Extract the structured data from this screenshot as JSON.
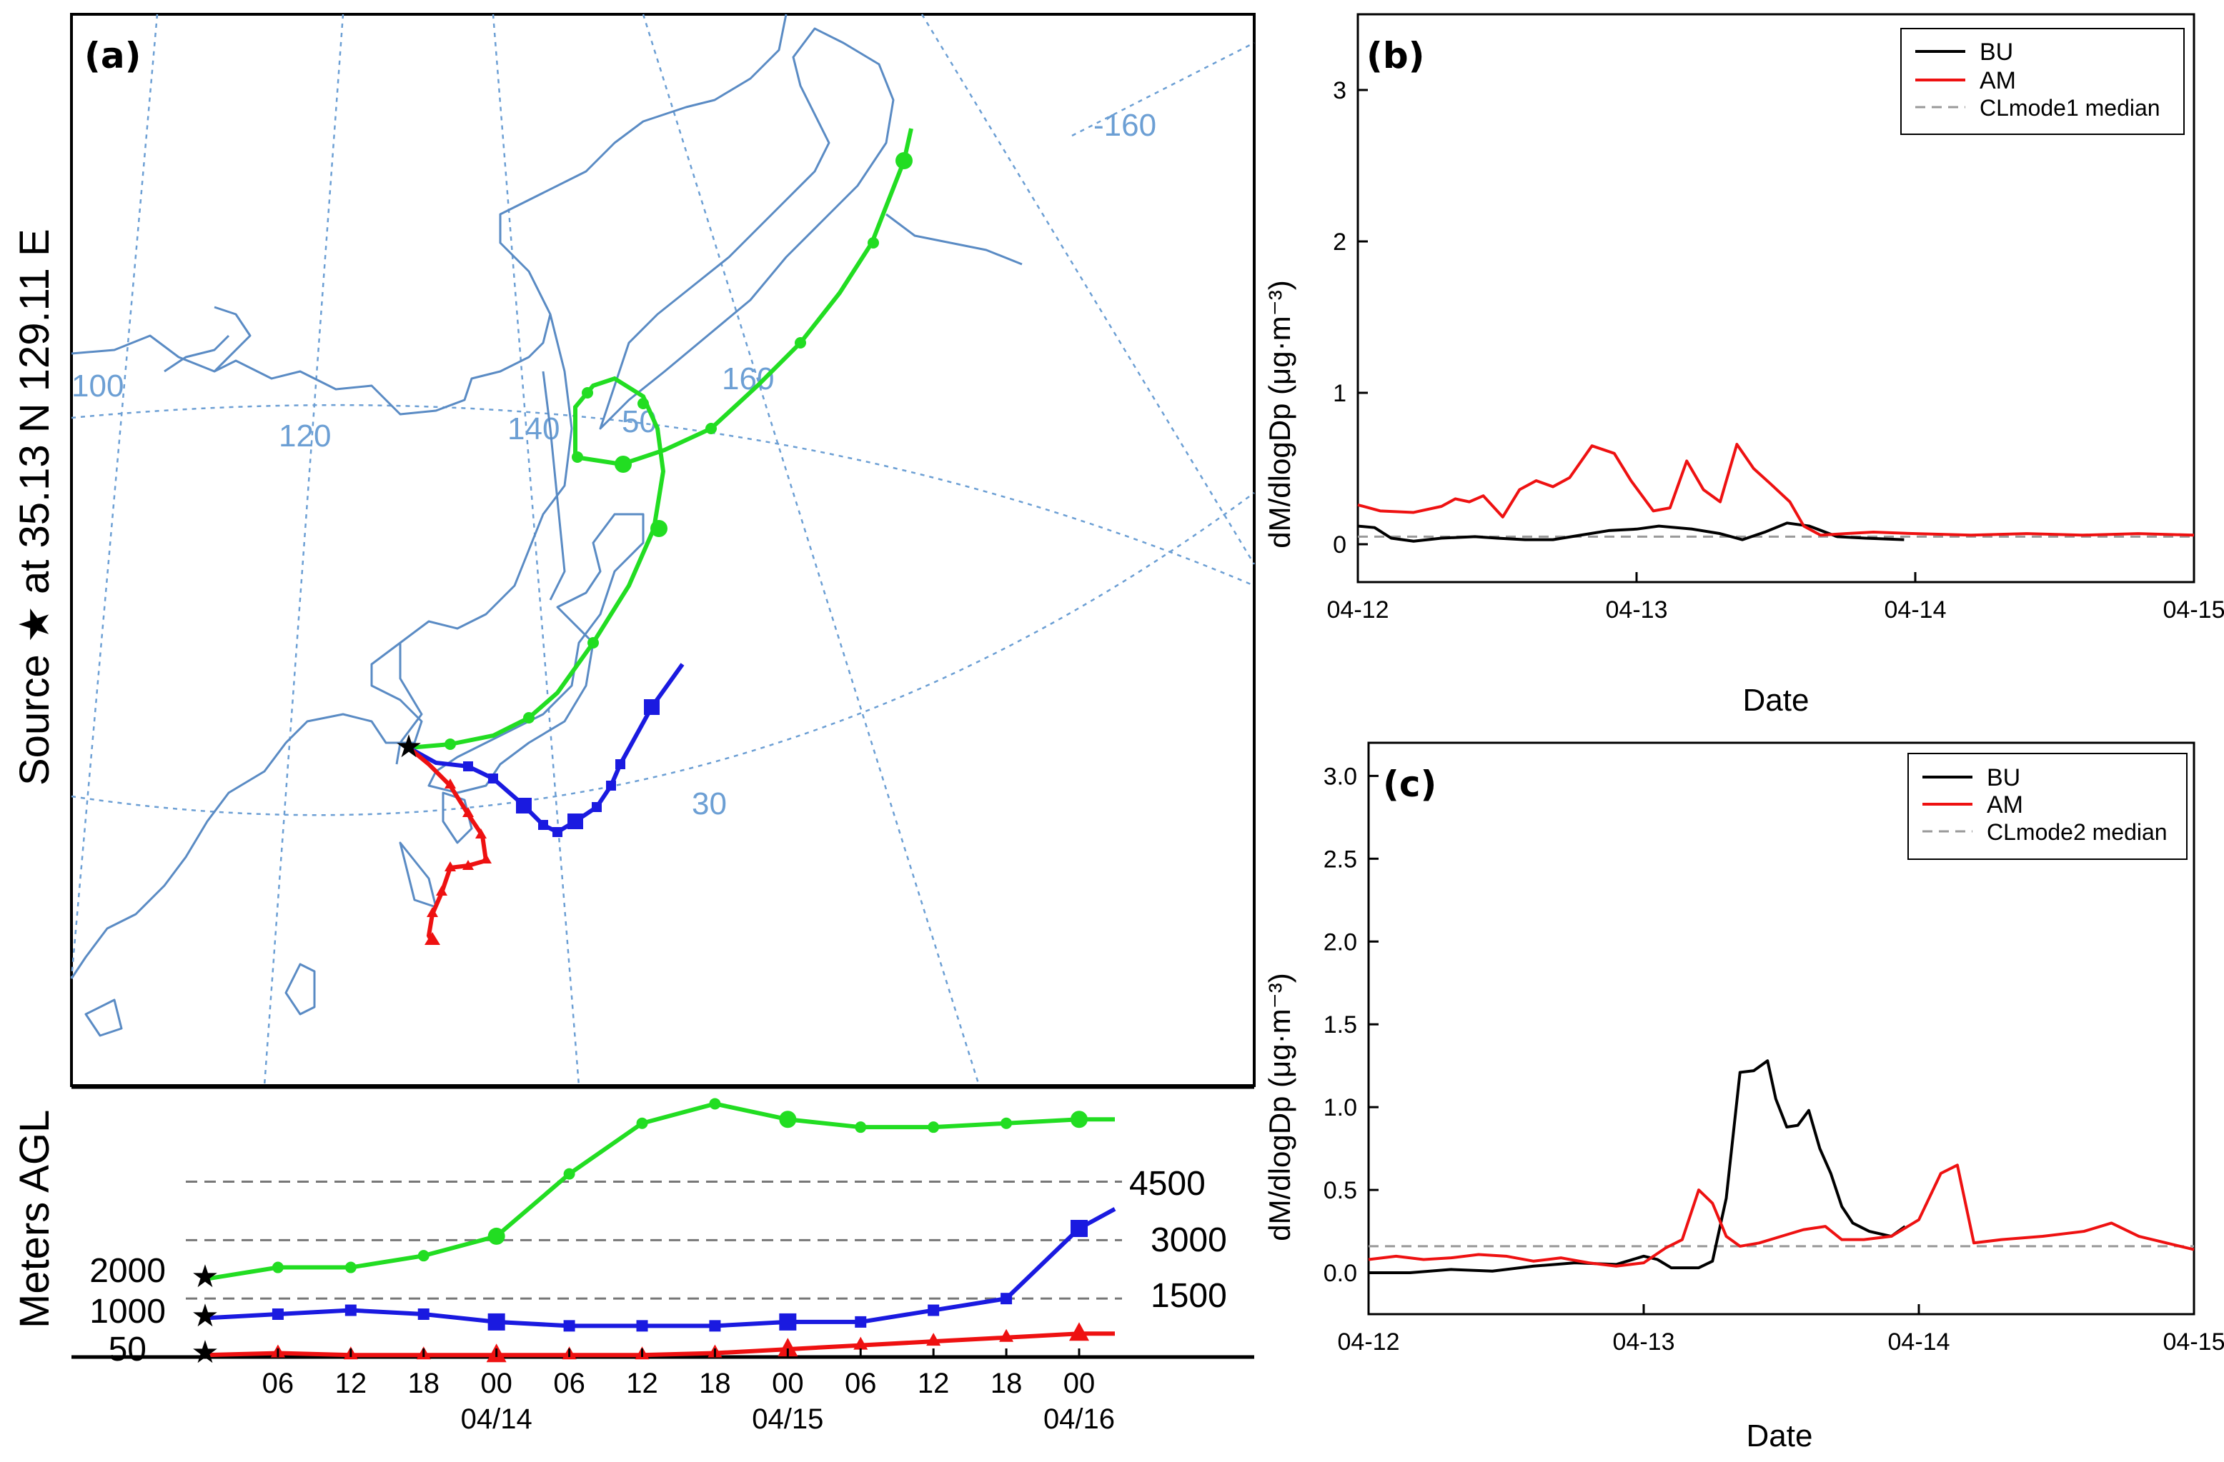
{
  "panel_a": {
    "label": "(a)",
    "source_title": "Source ★ at 35.13 N 129.11 E",
    "yaxis_label": "Meters AGL",
    "map_labels": {
      "lon_100": "100",
      "lon_120": "120",
      "lon_140": "140",
      "lon_160": "160",
      "lon_m160": "-160",
      "lat_50": "50",
      "lat_30": "30"
    },
    "height_ref_labels": [
      "4500",
      "3000",
      "1500"
    ],
    "start_height_labels": [
      "2000",
      "1000",
      "50"
    ],
    "time_ticks": [
      "06",
      "12",
      "18",
      "00",
      "06",
      "12",
      "18",
      "00",
      "06",
      "12",
      "18",
      "00"
    ],
    "date_labels": [
      "04/14",
      "04/15",
      "04/16"
    ]
  },
  "chart_data": [
    {
      "type": "line",
      "panel": "(a) vertical profile",
      "title": "",
      "xlabel": "",
      "ylabel": "Meters AGL",
      "x_hours": [
        0,
        6,
        12,
        18,
        24,
        30,
        36,
        42,
        48,
        54,
        60,
        66,
        72
      ],
      "reference_lines": [
        1500,
        3000,
        4500
      ],
      "series": [
        {
          "name": "2000 m",
          "color": "#22dd22",
          "values": [
            2000,
            2300,
            2300,
            2600,
            3100,
            4700,
            6000,
            6500,
            6100,
            5900,
            5900,
            6000,
            6100
          ]
        },
        {
          "name": "1000 m",
          "color": "#1a1ae0",
          "values": [
            1000,
            1100,
            1200,
            1100,
            900,
            800,
            800,
            800,
            900,
            900,
            1200,
            1500,
            3300
          ]
        },
        {
          "name": "50 m",
          "color": "#ee1111",
          "values": [
            50,
            100,
            50,
            50,
            50,
            50,
            50,
            100,
            200,
            300,
            400,
            500,
            600
          ]
        }
      ]
    },
    {
      "type": "line",
      "panel": "(b)",
      "title": "",
      "xlabel": "Date",
      "ylabel": "dM/dlogDp (μg·m⁻³)",
      "ylim": [
        -0.25,
        3.5
      ],
      "xlim": [
        0,
        3
      ],
      "xticks": [
        "04-12",
        "04-13",
        "04-14",
        "04-15"
      ],
      "yticks": [
        "0",
        "1",
        "2",
        "3"
      ],
      "legend": [
        "BU",
        "AM",
        "CLmode1 median"
      ],
      "median": 0.05,
      "series": [
        {
          "name": "BU",
          "color": "#000000",
          "x": [
            0,
            0.06,
            0.12,
            0.2,
            0.3,
            0.42,
            0.5,
            0.6,
            0.7,
            0.8,
            0.9,
            1.0,
            1.08,
            1.2,
            1.3,
            1.38,
            1.46,
            1.54,
            1.62,
            1.72,
            1.82,
            1.96
          ],
          "values": [
            0.12,
            0.11,
            0.04,
            0.02,
            0.04,
            0.05,
            0.04,
            0.03,
            0.03,
            0.06,
            0.09,
            0.1,
            0.12,
            0.1,
            0.07,
            0.03,
            0.08,
            0.14,
            0.12,
            0.05,
            0.04,
            0.03
          ]
        },
        {
          "name": "AM",
          "color": "#ee1111",
          "x": [
            0,
            0.08,
            0.2,
            0.3,
            0.35,
            0.4,
            0.45,
            0.52,
            0.58,
            0.64,
            0.7,
            0.76,
            0.84,
            0.92,
            0.98,
            1.06,
            1.12,
            1.18,
            1.24,
            1.3,
            1.36,
            1.42,
            1.48,
            1.55,
            1.6,
            1.66,
            1.75,
            1.85,
            2.0,
            2.2,
            2.4,
            2.6,
            2.8,
            3.0
          ],
          "values": [
            0.26,
            0.22,
            0.21,
            0.25,
            0.3,
            0.28,
            0.32,
            0.18,
            0.36,
            0.42,
            0.38,
            0.44,
            0.65,
            0.6,
            0.42,
            0.22,
            0.24,
            0.55,
            0.36,
            0.28,
            0.66,
            0.5,
            0.4,
            0.28,
            0.12,
            0.06,
            0.07,
            0.08,
            0.07,
            0.06,
            0.07,
            0.06,
            0.07,
            0.06
          ]
        }
      ]
    },
    {
      "type": "line",
      "panel": "(c)",
      "title": "",
      "xlabel": "Date",
      "ylabel": "dM/dlogDp (μg·m⁻³)",
      "ylim": [
        -0.25,
        3.2
      ],
      "xlim": [
        0,
        3
      ],
      "xticks": [
        "04-12",
        "04-13",
        "04-14",
        "04-15"
      ],
      "yticks": [
        "0.0",
        "0.5",
        "1.0",
        "1.5",
        "2.0",
        "2.5",
        "3.0"
      ],
      "legend": [
        "BU",
        "AM",
        "CLmode2 median"
      ],
      "median": 0.16,
      "series": [
        {
          "name": "BU",
          "color": "#000000",
          "x": [
            0,
            0.15,
            0.3,
            0.45,
            0.6,
            0.75,
            0.9,
            1.0,
            1.05,
            1.1,
            1.2,
            1.25,
            1.3,
            1.35,
            1.4,
            1.45,
            1.48,
            1.52,
            1.56,
            1.6,
            1.64,
            1.68,
            1.72,
            1.76,
            1.82,
            1.9,
            1.95
          ],
          "values": [
            0.0,
            0.0,
            0.02,
            0.01,
            0.04,
            0.06,
            0.05,
            0.1,
            0.08,
            0.03,
            0.03,
            0.07,
            0.45,
            1.21,
            1.22,
            1.28,
            1.05,
            0.88,
            0.89,
            0.98,
            0.75,
            0.6,
            0.4,
            0.3,
            0.25,
            0.22,
            0.28
          ]
        },
        {
          "name": "AM",
          "color": "#ee1111",
          "x": [
            0,
            0.1,
            0.2,
            0.3,
            0.4,
            0.5,
            0.6,
            0.7,
            0.8,
            0.9,
            1.0,
            1.08,
            1.14,
            1.2,
            1.25,
            1.3,
            1.35,
            1.42,
            1.5,
            1.58,
            1.66,
            1.72,
            1.8,
            1.9,
            2.0,
            2.08,
            2.14,
            2.2,
            2.3,
            2.45,
            2.6,
            2.7,
            2.8,
            2.9,
            3.0
          ],
          "values": [
            0.08,
            0.1,
            0.08,
            0.09,
            0.11,
            0.1,
            0.07,
            0.09,
            0.06,
            0.04,
            0.06,
            0.15,
            0.2,
            0.5,
            0.42,
            0.22,
            0.16,
            0.18,
            0.22,
            0.26,
            0.28,
            0.2,
            0.2,
            0.22,
            0.32,
            0.6,
            0.65,
            0.18,
            0.2,
            0.22,
            0.25,
            0.3,
            0.22,
            0.18,
            0.14
          ]
        }
      ]
    }
  ]
}
